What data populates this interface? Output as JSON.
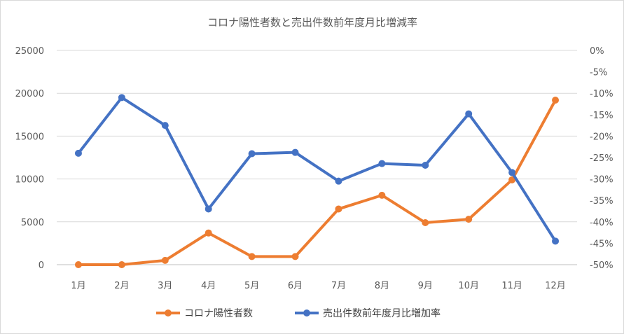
{
  "chart_data": {
    "type": "line",
    "title": "コロナ陽性者数と売出件数前年度月比増減率",
    "categories": [
      "1月",
      "2月",
      "3月",
      "4月",
      "5月",
      "6月",
      "7月",
      "8月",
      "9月",
      "10月",
      "11月",
      "12月"
    ],
    "y_left": {
      "min": 0,
      "max": 25000,
      "ticks": [
        0,
        5000,
        10000,
        15000,
        20000,
        25000
      ],
      "tick_labels": [
        "0",
        "5000",
        "10000",
        "15000",
        "20000",
        "25000"
      ]
    },
    "y_right": {
      "min": -50,
      "max": 0,
      "ticks": [
        0,
        -5,
        -10,
        -15,
        -20,
        -25,
        -30,
        -35,
        -40,
        -45,
        -50
      ],
      "tick_labels": [
        "0%",
        "-5%",
        "-10%",
        "-15%",
        "-20%",
        "-25%",
        "-30%",
        "-35%",
        "-40%",
        "-45%",
        "-50%"
      ]
    },
    "grid": true,
    "legend_position": "bottom",
    "series": [
      {
        "name": "コロナ陽性者数",
        "axis": "left",
        "color": "#ed7d31",
        "values": [
          0,
          0,
          500,
          3700,
          950,
          950,
          6500,
          8100,
          4900,
          5300,
          9900,
          19200
        ]
      },
      {
        "name": "売出件数前年度月比増加率",
        "axis": "right",
        "color": "#4472c4",
        "values": [
          -24,
          -11,
          -17.5,
          -37,
          -24.1,
          -23.8,
          -30.5,
          -26.4,
          -26.8,
          -14.8,
          -28.5,
          -44.5
        ]
      }
    ]
  }
}
